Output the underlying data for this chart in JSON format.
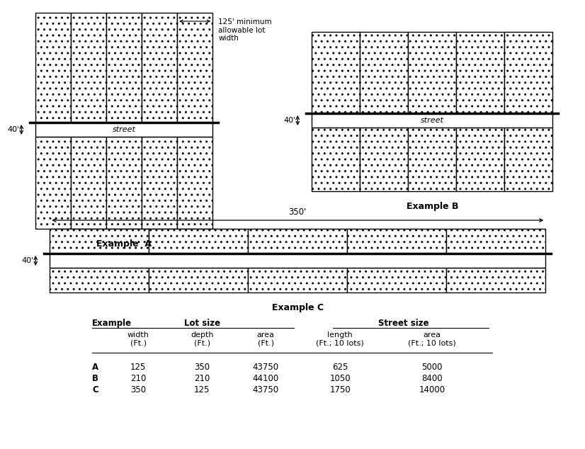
{
  "background_color": "#ffffff",
  "fig_width": 7.96,
  "fig_height": 6.14,
  "example_a": {
    "label": "Example  A",
    "num_lots": 5,
    "street_label": "street",
    "dim_label": "40'",
    "top_annotation": "125' minimum\nallowable lot\nwidth",
    "arrow_label": "125'"
  },
  "example_b": {
    "label": "Example B",
    "num_lots": 5,
    "street_label": "street",
    "dim_label": "40'"
  },
  "example_c": {
    "label": "Example C",
    "num_lots": 5,
    "street_label": "",
    "dim_label": "40'",
    "top_arrow_label": "350'"
  },
  "table": {
    "rows": [
      [
        "A",
        "125",
        "350",
        "43750",
        "625",
        "5000"
      ],
      [
        "B",
        "210",
        "210",
        "44100",
        "1050",
        "8400"
      ],
      [
        "C",
        "350",
        "125",
        "43750",
        "1750",
        "14000"
      ]
    ]
  }
}
